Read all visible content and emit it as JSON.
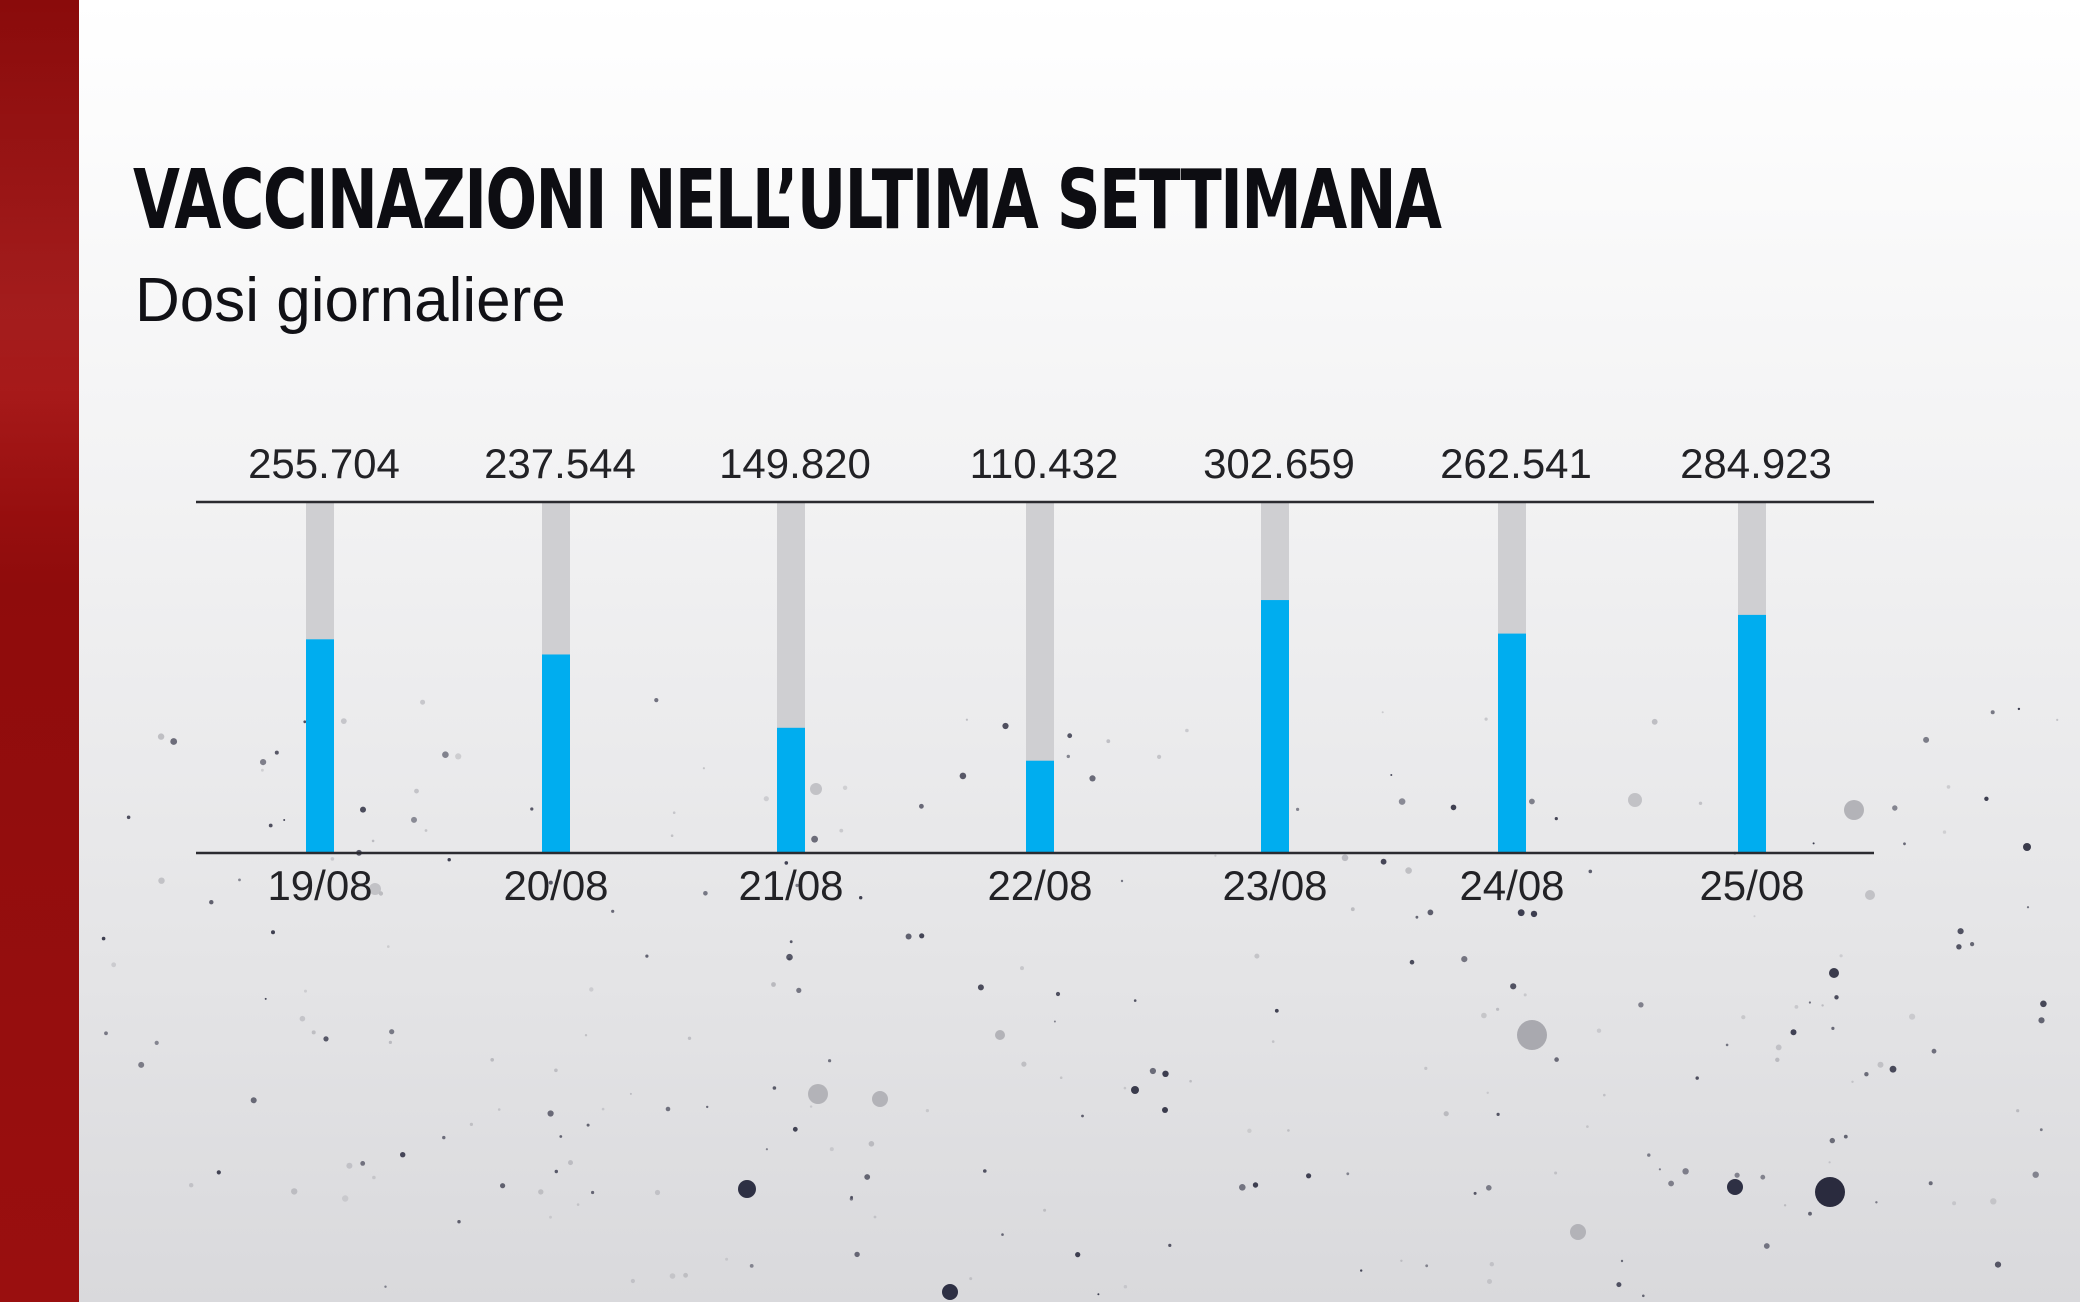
{
  "header": {
    "title": "VACCINAZIONI NELL’ULTIMA SETTIMANA",
    "subtitle": "Dosi giornaliere"
  },
  "colors": {
    "bar_fill": "#00adef",
    "bar_track": "#cfcfd2",
    "axis_line": "#2b2b30",
    "text": "#222226",
    "accent_strip": "#9b0e0e"
  },
  "chart_data": {
    "type": "bar",
    "title": "VACCINAZIONI NELL’ULTIMA SETTIMANA",
    "subtitle": "Dosi giornaliere",
    "categories": [
      "19/08",
      "20/08",
      "21/08",
      "22/08",
      "23/08",
      "24/08",
      "25/08"
    ],
    "values": [
      255704,
      237544,
      149820,
      110432,
      302659,
      262541,
      284923
    ],
    "value_labels": [
      "255.704",
      "237.544",
      "149.820",
      "110.432",
      "302.659",
      "262.541",
      "284.923"
    ],
    "xlabel": "",
    "ylabel": "",
    "ylim": [
      0,
      420000
    ],
    "grid": false,
    "legend": "none"
  }
}
